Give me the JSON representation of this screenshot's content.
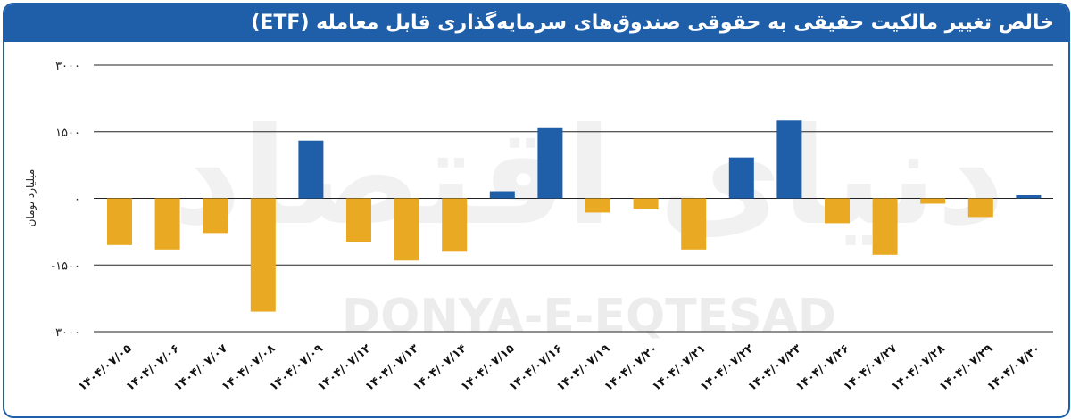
{
  "header": {
    "title": "خالص تغییر مالکیت حقیقی به حقوقی صندوق‌های سرمایه‌گذاری قابل معامله (ETF)"
  },
  "watermark": {
    "latin": "DONYA-E-EQTESAD",
    "persian": "دنیای اقتصاد"
  },
  "colors": {
    "positive": "#1f5ea8",
    "negative": "#e9a923",
    "header": "#1f5ea8",
    "grid": "#222222"
  },
  "chart_data": {
    "type": "bar",
    "ylabel": "میلیارد تومان",
    "ylim": [
      -3000,
      3000
    ],
    "yticks": [
      3000,
      1500,
      0,
      -1500,
      -3000
    ],
    "ytick_labels": [
      "۳۰۰۰",
      "۱۵۰۰",
      "۰",
      "-۱۵۰۰",
      "-۳۰۰۰"
    ],
    "grid": true,
    "categories": [
      "۱۴۰۴/۰۷/۰۵",
      "۱۴۰۴/۰۷/۰۶",
      "۱۴۰۴/۰۷/۰۷",
      "۱۴۰۴/۰۷/۰۸",
      "۱۴۰۴/۰۷/۰۹",
      "۱۴۰۴/۰۷/۱۲",
      "۱۴۰۴/۰۷/۱۳",
      "۱۴۰۴/۰۷/۱۴",
      "۱۴۰۴/۰۷/۱۵",
      "۱۴۰۴/۰۷/۱۶",
      "۱۴۰۴/۰۷/۱۹",
      "۱۴۰۴/۰۷/۲۰",
      "۱۴۰۴/۰۷/۲۱",
      "۱۴۰۴/۰۷/۲۲",
      "۱۴۰۴/۰۷/۲۳",
      "۱۴۰۴/۰۷/۲۶",
      "۱۴۰۴/۰۷/۲۷",
      "۱۴۰۴/۰۷/۲۸",
      "۱۴۰۴/۰۷/۲۹",
      "۱۴۰۴/۰۷/۳۰"
    ],
    "values": [
      -1050,
      -1150,
      -780,
      -2550,
      1300,
      -980,
      -1400,
      -1200,
      160,
      1580,
      -320,
      -250,
      -1150,
      920,
      1750,
      -560,
      -1270,
      -120,
      -420,
      70
    ]
  }
}
